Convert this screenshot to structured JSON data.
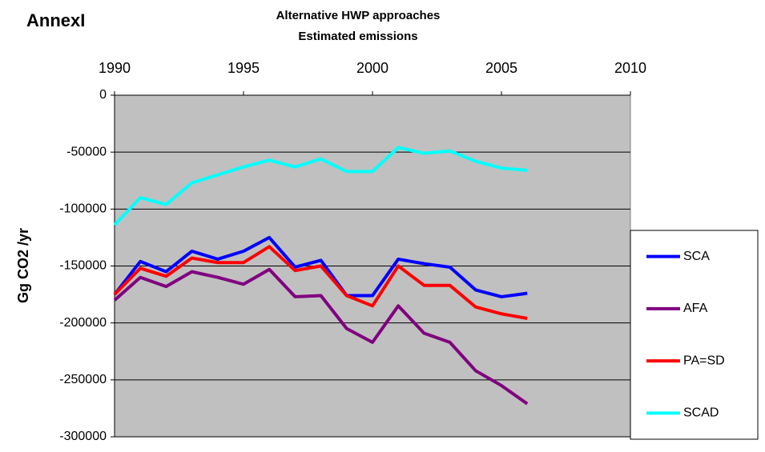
{
  "chart_data": {
    "type": "line",
    "label": "AnnexI",
    "title": "Alternative HWP approaches",
    "subtitle": "Estimated emissions",
    "y_label": "Gg CO2 /yr",
    "x": [
      1990,
      1991,
      1992,
      1993,
      1994,
      1995,
      1996,
      1997,
      1998,
      1999,
      2000,
      2001,
      2002,
      2003,
      2004,
      2005,
      2006
    ],
    "xlim": [
      1990,
      2010
    ],
    "xticks": [
      1990,
      1995,
      2000,
      2005,
      2010
    ],
    "ylim": [
      -300000,
      0
    ],
    "yticks": [
      0,
      -50000,
      -100000,
      -150000,
      -200000,
      -250000,
      -300000
    ],
    "grid": true,
    "legend": "right",
    "series": [
      {
        "name": "SCA",
        "color": "#0000ff",
        "values": [
          -175000,
          -146000,
          -155000,
          -137000,
          -144000,
          -137000,
          -125000,
          -151000,
          -145000,
          -176000,
          -176000,
          -144000,
          -148000,
          -151000,
          -171000,
          -177000,
          -174000
        ]
      },
      {
        "name": "AFA",
        "color": "#800080",
        "values": [
          -180000,
          -160000,
          -168000,
          -155000,
          -160000,
          -166000,
          -153000,
          -177000,
          -176000,
          -205000,
          -217000,
          -185000,
          -209000,
          -217000,
          -242000,
          -255000,
          -271000
        ]
      },
      {
        "name": "PA=SD",
        "color": "#ff0000",
        "values": [
          -175000,
          -152000,
          -159000,
          -143000,
          -147000,
          -147000,
          -133000,
          -154000,
          -150000,
          -176000,
          -185000,
          -150000,
          -167000,
          -167000,
          -186000,
          -192000,
          -196000
        ]
      },
      {
        "name": "SCAD",
        "color": "#00ffff",
        "values": [
          -114000,
          -90000,
          -96000,
          -77000,
          -70000,
          -63000,
          -57000,
          -63000,
          -56000,
          -67000,
          -67000,
          -46000,
          -51000,
          -49000,
          -58000,
          -64000,
          -66000
        ]
      }
    ]
  }
}
